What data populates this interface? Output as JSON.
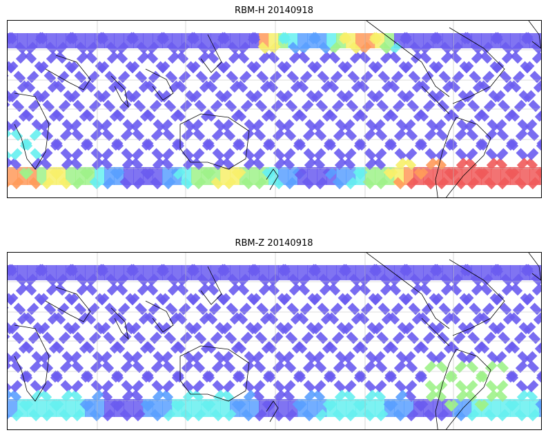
{
  "panels": [
    {
      "title": "RBM-H 20140918",
      "field": "high"
    },
    {
      "title": "RBM-Z 20140918",
      "field": "low"
    }
  ],
  "colormap": [
    "#6a5cf0",
    "#5aa0ff",
    "#66f0f0",
    "#9ff28a",
    "#f7f06a",
    "#ff9a5a",
    "#f05a5a"
  ],
  "grid": {
    "color": "#bdbdbd"
  }
}
